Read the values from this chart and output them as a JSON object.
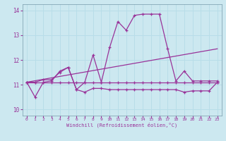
{
  "background_color": "#cce8f0",
  "grid_color": "#aaddee",
  "line_color": "#993399",
  "xlabel": "Windchill (Refroidissement éolien,°C)",
  "xlim": [
    -0.5,
    23.5
  ],
  "ylim": [
    9.75,
    14.25
  ],
  "yticks": [
    10,
    11,
    12,
    13,
    14
  ],
  "xticks": [
    0,
    1,
    2,
    3,
    4,
    5,
    6,
    7,
    8,
    9,
    10,
    11,
    12,
    13,
    14,
    15,
    16,
    17,
    18,
    19,
    20,
    21,
    22,
    23
  ],
  "line1_x": [
    0,
    1,
    2,
    3,
    4,
    5,
    6,
    7,
    8,
    9,
    10,
    11,
    12,
    13,
    14,
    15,
    16,
    17,
    18,
    19,
    20,
    21,
    22,
    23
  ],
  "line1_y": [
    11.1,
    11.1,
    11.1,
    11.1,
    11.1,
    11.1,
    11.1,
    11.1,
    11.1,
    11.1,
    11.1,
    11.1,
    11.1,
    11.1,
    11.1,
    11.1,
    11.1,
    11.1,
    11.1,
    11.1,
    11.1,
    11.1,
    11.1,
    11.1
  ],
  "line2_x": [
    0,
    1,
    2,
    3,
    4,
    5,
    6,
    7,
    8,
    9,
    10,
    11,
    12,
    13,
    14,
    15,
    16,
    17,
    18,
    19,
    20,
    21,
    22,
    23
  ],
  "line2_y": [
    11.1,
    11.1,
    11.2,
    11.2,
    11.5,
    11.7,
    10.8,
    11.1,
    12.2,
    11.1,
    12.5,
    13.55,
    13.2,
    13.8,
    13.85,
    13.85,
    13.85,
    12.45,
    11.15,
    11.55,
    11.15,
    11.15,
    11.15,
    11.15
  ],
  "line3_x": [
    0,
    23
  ],
  "line3_y": [
    11.1,
    12.45
  ],
  "line4_x": [
    0,
    1,
    2,
    3,
    4,
    5,
    6,
    7,
    8,
    9,
    10,
    11,
    12,
    13,
    14,
    15,
    16,
    17,
    18,
    19,
    20,
    21,
    22,
    23
  ],
  "line4_y": [
    11.1,
    10.5,
    11.1,
    11.15,
    11.55,
    11.7,
    10.8,
    10.7,
    10.85,
    10.85,
    10.8,
    10.8,
    10.8,
    10.8,
    10.8,
    10.8,
    10.8,
    10.8,
    10.8,
    10.7,
    10.75,
    10.75,
    10.75,
    11.1
  ]
}
